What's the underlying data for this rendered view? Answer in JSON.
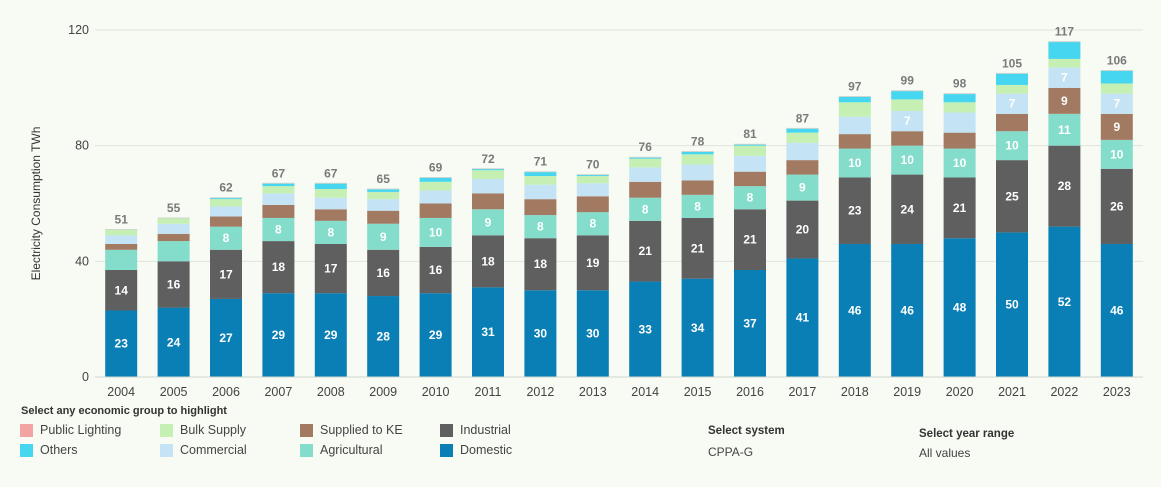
{
  "chart_data": {
    "type": "bar",
    "stacked": true,
    "ylabel": "Electricity Consumption TWh",
    "ylim": [
      0,
      120
    ],
    "yticks": [
      "0",
      "40",
      "80",
      "120"
    ],
    "grid": true,
    "categories": [
      "2004",
      "2005",
      "2006",
      "2007",
      "2008",
      "2009",
      "2010",
      "2011",
      "2012",
      "2013",
      "2014",
      "2015",
      "2016",
      "2017",
      "2018",
      "2019",
      "2020",
      "2021",
      "2022",
      "2023"
    ],
    "totals": [
      51,
      55,
      62,
      67,
      67,
      65,
      69,
      72,
      71,
      70,
      76,
      78,
      81,
      87,
      97,
      99,
      98,
      105,
      117,
      106
    ],
    "series": [
      {
        "name": "Domestic",
        "color": "#0a7fb5",
        "values": [
          23,
          24,
          27,
          29,
          29,
          28,
          29,
          31,
          30,
          30,
          33,
          34,
          37,
          41,
          46,
          46,
          48,
          50,
          52,
          46
        ],
        "labels": [
          "23",
          "24",
          "27",
          "29",
          "29",
          "28",
          "29",
          "31",
          "30",
          "30",
          "33",
          "34",
          "37",
          "41",
          "46",
          "46",
          "48",
          "50",
          "52",
          "46"
        ]
      },
      {
        "name": "Industrial",
        "color": "#5f5f5f",
        "values": [
          14,
          16,
          17,
          18,
          17,
          16,
          16,
          18,
          18,
          19,
          21,
          21,
          21,
          20,
          23,
          24,
          21,
          25,
          28,
          26
        ],
        "labels": [
          "14",
          "16",
          "17",
          "18",
          "17",
          "16",
          "16",
          "18",
          "18",
          "19",
          "21",
          "21",
          "21",
          "20",
          "23",
          "24",
          "21",
          "25",
          "28",
          "26"
        ]
      },
      {
        "name": "Agricultural",
        "color": "#84dccb",
        "values": [
          7,
          7,
          8,
          8,
          8,
          9,
          10,
          9,
          8,
          8,
          8,
          8,
          8,
          9,
          10,
          10,
          10,
          10,
          11,
          10
        ],
        "labels": [
          "",
          "",
          "8",
          "8",
          "8",
          "9",
          "10",
          "9",
          "8",
          "8",
          "8",
          "8",
          "8",
          "9",
          "10",
          "10",
          "10",
          "10",
          "11",
          "10"
        ]
      },
      {
        "name": "Supplied to KE",
        "color": "#a27a62",
        "values": [
          2,
          2.5,
          3.5,
          4.5,
          4,
          4.5,
          5,
          5.5,
          5.5,
          5.5,
          5.5,
          5,
          5,
          5,
          5,
          5,
          5.5,
          6,
          9,
          9
        ],
        "labels": [
          "",
          "",
          "",
          "",
          "",
          "",
          "",
          "",
          "",
          "",
          "",
          "",
          "",
          "",
          "",
          "",
          "",
          "",
          "9",
          "9"
        ]
      },
      {
        "name": "Commercial",
        "color": "#c4e3f4",
        "values": [
          3,
          3.5,
          3.5,
          4,
          4,
          4,
          4.5,
          5,
          5,
          4.5,
          5,
          5.5,
          5.5,
          6,
          6,
          7,
          7,
          7,
          7,
          7
        ],
        "labels": [
          "",
          "",
          "",
          "",
          "",
          "",
          "",
          "",
          "",
          "",
          "",
          "",
          "",
          "",
          "",
          "7",
          "",
          "7",
          "7",
          "7"
        ]
      },
      {
        "name": "Bulk Supply",
        "color": "#c6f0b3",
        "values": [
          2,
          2,
          2.5,
          2.5,
          3,
          2.5,
          3,
          3,
          3,
          2.5,
          3,
          3.5,
          3.5,
          3.5,
          5,
          4,
          3.5,
          3,
          3,
          3.5
        ],
        "labels": [
          "",
          "",
          "",
          "",
          "",
          "",
          "",
          "",
          "",
          "",
          "",
          "",
          "",
          "",
          "",
          "",
          "",
          "",
          "",
          ""
        ]
      },
      {
        "name": "Others",
        "color": "#47d6ef",
        "values": [
          0,
          0,
          0.5,
          1,
          2,
          1,
          1.5,
          0.5,
          1.5,
          0.5,
          0.5,
          1,
          0.5,
          1.5,
          2,
          3,
          3,
          4,
          6,
          4.5
        ],
        "labels": [
          "",
          "",
          "",
          "",
          "",
          "",
          "",
          "",
          "",
          "",
          "",
          "",
          "",
          "",
          "",
          "",
          "",
          "",
          "",
          ""
        ]
      },
      {
        "name": "Public Lighting",
        "color": "#f4a3a3",
        "values": [
          0,
          0,
          0,
          0,
          0,
          0,
          0,
          0,
          0,
          0,
          0,
          0,
          0,
          0,
          0,
          0,
          0,
          0,
          0,
          0
        ],
        "labels": [
          "",
          "",
          "",
          "",
          "",
          "",
          "",
          "",
          "",
          "",
          "",
          "",
          "",
          "",
          "",
          "",
          "",
          "",
          "",
          ""
        ]
      }
    ]
  },
  "legend": {
    "title": "Select any economic group to highlight",
    "items": [
      {
        "label": "Public Lighting",
        "color": "#f4a3a3"
      },
      {
        "label": "Bulk Supply",
        "color": "#c6f0b3"
      },
      {
        "label": "Supplied to KE",
        "color": "#a27a62"
      },
      {
        "label": "Industrial",
        "color": "#5f5f5f"
      },
      {
        "label": "Others",
        "color": "#47d6ef"
      },
      {
        "label": "Commercial",
        "color": "#c4e3f4"
      },
      {
        "label": "Agricultural",
        "color": "#84dccb"
      },
      {
        "label": "Domestic",
        "color": "#0a7fb5"
      }
    ]
  },
  "system_filter": {
    "label": "Select system",
    "value": "CPPA-G"
  },
  "year_filter": {
    "label": "Select year range",
    "value": "All values"
  }
}
